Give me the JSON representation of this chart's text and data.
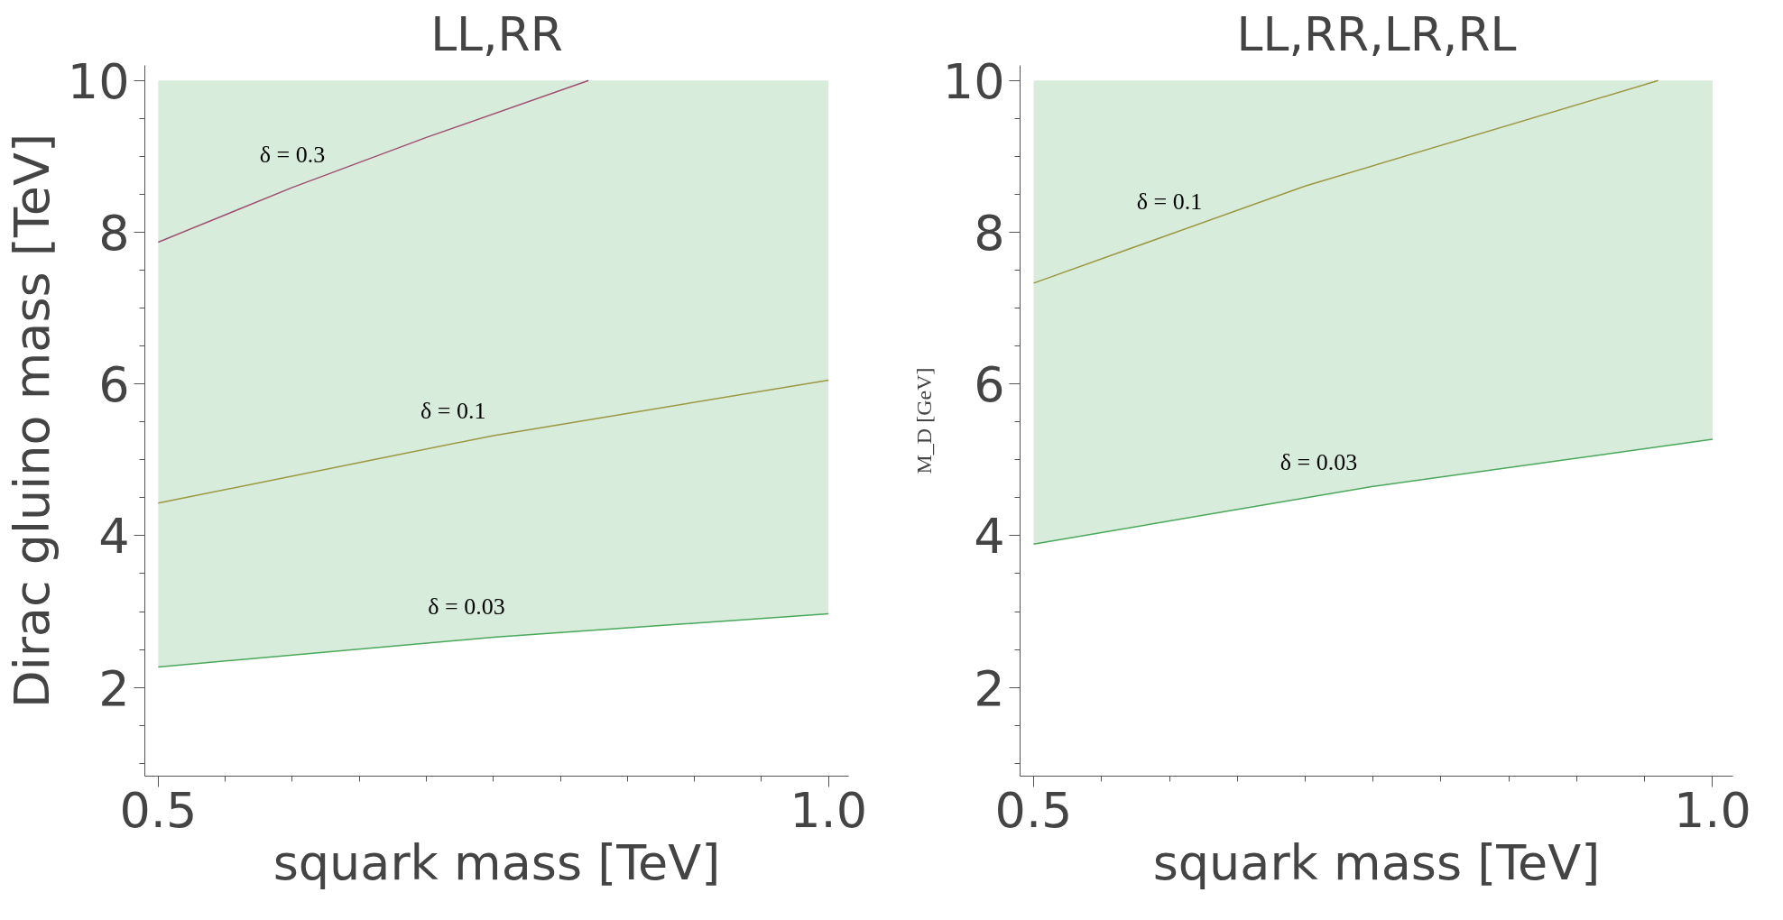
{
  "chart_data": [
    {
      "type": "line",
      "title": "LL,RR",
      "xlabel": "squark mass [TeV]",
      "ylabel": "Dirac gluino mass [TeV]",
      "xlim": [
        0.49,
        1.015
      ],
      "ylim": [
        0.83,
        10.2
      ],
      "xticks": [
        0.5,
        {
          "value": 1.0,
          "label": "1.0"
        }
      ],
      "yticks": [
        2,
        4,
        6,
        8,
        10
      ],
      "line_style": "solid",
      "series": [
        {
          "color": "#a04f70",
          "x": [
            0.5,
            0.6,
            0.7,
            0.821
          ],
          "values": [
            7.87,
            8.59,
            9.25,
            10.0
          ]
        },
        {
          "color": "#9a9840",
          "x": [
            0.5,
            0.75,
            1.0
          ],
          "values": [
            4.43,
            5.32,
            6.05
          ]
        },
        {
          "color": "#4aa85a",
          "x": [
            0.5,
            0.75,
            1.0
          ],
          "values": [
            2.27,
            2.66,
            2.97
          ],
          "lower": [
            2.27,
            2.66,
            2.97
          ],
          "upper": [
            10,
            10,
            10
          ]
        }
      ],
      "annotations": [
        {
          "text": "δ = 0.3",
          "x": 0.6,
          "y": 8.59
        },
        {
          "text": "δ = 0.1",
          "x": 0.72,
          "y": 5.21
        },
        {
          "text": "δ = 0.03",
          "x": 0.73,
          "y": 2.63
        }
      ]
    },
    {
      "type": "line",
      "title": "LL,RR,LR,RL",
      "xlabel": "squark mass [TeV]",
      "ylabel": "M_D [GeV]",
      "xlim": [
        0.49,
        1.015
      ],
      "ylim": [
        0.83,
        10.2
      ],
      "xticks": [
        0.5,
        {
          "value": 1.0,
          "label": "1.0"
        }
      ],
      "yticks": [
        2,
        4,
        6,
        8,
        10
      ],
      "line_style": "solid",
      "series": [
        {
          "color": "#9a9840",
          "x": [
            0.5,
            0.7,
            0.96
          ],
          "values": [
            7.33,
            8.61,
            10.0
          ]
        },
        {
          "color": "#4aa85a",
          "x": [
            0.5,
            0.75,
            1.0
          ],
          "values": [
            3.89,
            4.65,
            5.27
          ],
          "lower": [
            3.89,
            4.65,
            5.27
          ],
          "upper": [
            10,
            10,
            10
          ]
        }
      ],
      "annotations": [
        {
          "text": "δ = 0.1",
          "x": 0.6,
          "y": 7.97
        },
        {
          "text": "δ = 0.03",
          "x": 0.71,
          "y": 4.53
        }
      ]
    }
  ]
}
